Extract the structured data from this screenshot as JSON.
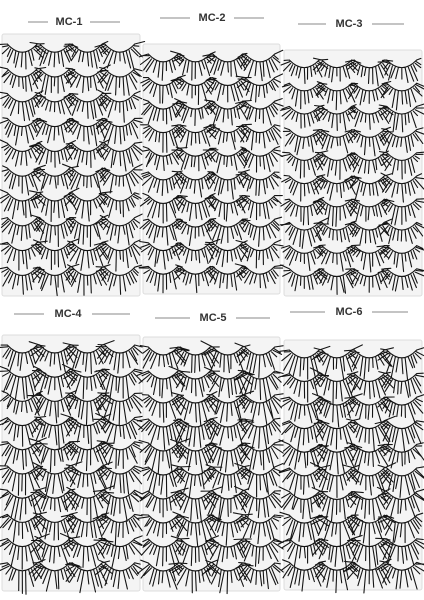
{
  "labels": [
    "MC-1",
    "MC-2",
    "MC-3",
    "MC-4",
    "MC-5",
    "MC-6"
  ]
}
